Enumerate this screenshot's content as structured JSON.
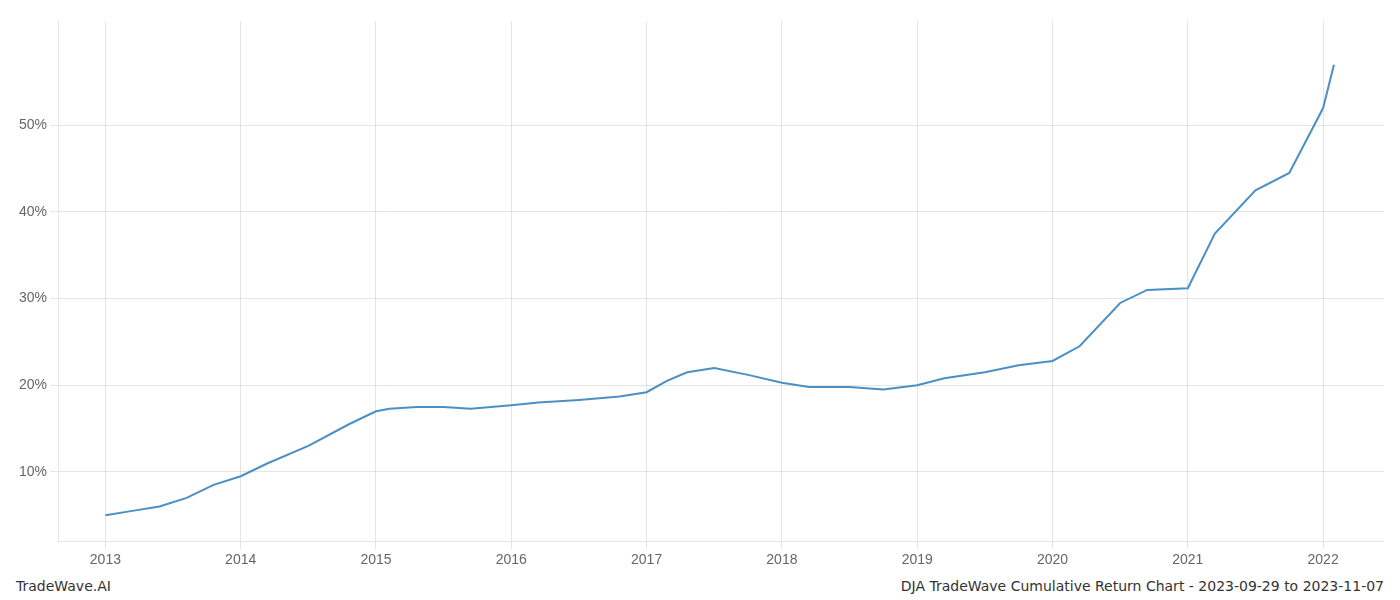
{
  "chart_data": {
    "type": "line",
    "title": "DJA TradeWave Cumulative Return Chart - 2023-09-29 to 2023-11-07",
    "annotations": [
      "TradeWave.AI"
    ],
    "x": [
      2013.0,
      2013.2,
      2013.4,
      2013.6,
      2013.8,
      2014.0,
      2014.2,
      2014.5,
      2014.8,
      2015.0,
      2015.1,
      2015.3,
      2015.5,
      2015.7,
      2016.0,
      2016.2,
      2016.5,
      2016.8,
      2017.0,
      2017.15,
      2017.3,
      2017.5,
      2017.75,
      2018.0,
      2018.2,
      2018.5,
      2018.75,
      2019.0,
      2019.2,
      2019.5,
      2019.75,
      2020.0,
      2020.2,
      2020.5,
      2020.7,
      2021.0,
      2021.2,
      2021.5,
      2021.75,
      2022.0,
      2022.08
    ],
    "values": [
      5.0,
      5.5,
      6.0,
      7.0,
      8.5,
      9.5,
      11.0,
      13.0,
      15.5,
      17.0,
      17.3,
      17.5,
      17.5,
      17.3,
      17.7,
      18.0,
      18.3,
      18.7,
      19.2,
      20.5,
      21.5,
      22.0,
      21.2,
      20.3,
      19.8,
      19.8,
      19.5,
      20.0,
      20.8,
      21.5,
      22.3,
      22.8,
      24.5,
      29.5,
      31.0,
      31.2,
      37.5,
      42.5,
      44.5,
      52.0,
      57.0
    ],
    "color": "#4a90c4",
    "xlim": [
      2012.65,
      2022.45
    ],
    "ylim": [
      2.0,
      62.0
    ],
    "xticks": [
      2013,
      2014,
      2015,
      2016,
      2017,
      2018,
      2019,
      2020,
      2021,
      2022
    ],
    "yticks": [
      {
        "value": 10,
        "label": "10%"
      },
      {
        "value": 20,
        "label": "20%"
      },
      {
        "value": 30,
        "label": "30%"
      },
      {
        "value": 40,
        "label": "40%"
      },
      {
        "value": 50,
        "label": "50%"
      }
    ],
    "grid": true
  }
}
